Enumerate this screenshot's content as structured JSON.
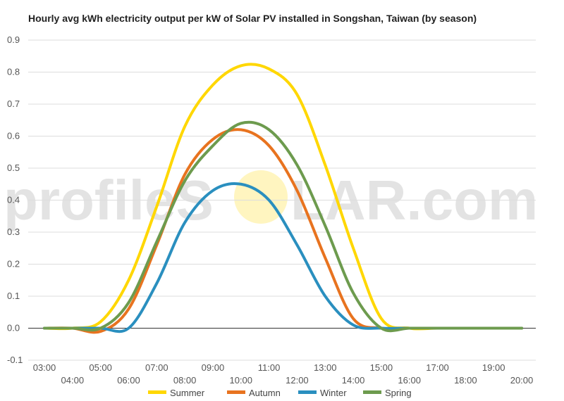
{
  "watermark": {
    "left": "profileS",
    "right": "LAR.com",
    "sun_color": "#fff3b0"
  },
  "chart_data": {
    "type": "line",
    "title": "Hourly avg kWh electricity output per kW of Solar PV installed in Songshan, Taiwan (by season)",
    "xlabel": "",
    "ylabel": "",
    "ylim": [
      -0.1,
      0.9
    ],
    "yticks": [
      "-0.1",
      "0.0",
      "0.1",
      "0.2",
      "0.3",
      "0.4",
      "0.5",
      "0.6",
      "0.7",
      "0.8",
      "0.9"
    ],
    "x_tick_labels": [
      "03:00",
      "04:00",
      "05:00",
      "06:00",
      "07:00",
      "08:00",
      "09:00",
      "10:00",
      "11:00",
      "12:00",
      "13:00",
      "14:00",
      "15:00",
      "16:00",
      "17:00",
      "18:00",
      "19:00",
      "20:00"
    ],
    "x": [
      3,
      4,
      5,
      6,
      7,
      8,
      9,
      10,
      11,
      12,
      13,
      14,
      15,
      16,
      17,
      18,
      19,
      20
    ],
    "grid": true,
    "legend_position": "bottom",
    "series": [
      {
        "name": "Summer",
        "color": "#ffd700",
        "values": [
          0.0,
          0.0,
          0.02,
          0.15,
          0.38,
          0.63,
          0.76,
          0.82,
          0.81,
          0.73,
          0.51,
          0.25,
          0.03,
          0.0,
          0.0,
          0.0,
          0.0,
          0.0
        ]
      },
      {
        "name": "Autumn",
        "color": "#e8731f",
        "values": [
          0.0,
          0.0,
          -0.01,
          0.06,
          0.26,
          0.48,
          0.59,
          0.62,
          0.57,
          0.43,
          0.22,
          0.03,
          0.0,
          0.0,
          0.0,
          0.0,
          0.0,
          0.0
        ]
      },
      {
        "name": "Winter",
        "color": "#2a8fbf",
        "values": [
          0.0,
          0.0,
          0.0,
          0.0,
          0.14,
          0.33,
          0.43,
          0.45,
          0.4,
          0.26,
          0.1,
          0.01,
          0.0,
          0.0,
          0.0,
          0.0,
          0.0,
          0.0
        ]
      },
      {
        "name": "Spring",
        "color": "#6d9b4e",
        "values": [
          0.0,
          0.0,
          0.0,
          0.08,
          0.27,
          0.46,
          0.57,
          0.64,
          0.62,
          0.51,
          0.32,
          0.11,
          0.0,
          0.0,
          0.0,
          0.0,
          0.0,
          0.0
        ]
      }
    ]
  }
}
